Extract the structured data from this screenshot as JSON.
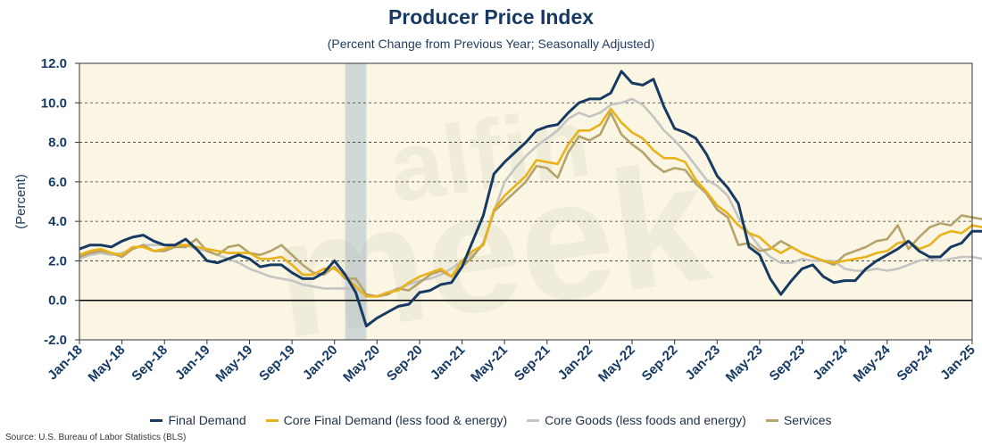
{
  "chart_data": {
    "type": "line",
    "title": "Producer Price Index",
    "subtitle": "(Percent Change from Previous Year; Seasonally Adjusted)",
    "ylabel": "(Percent)",
    "ylim": [
      -2,
      12
    ],
    "yticks": [
      "12.0",
      "10.0",
      "8.0",
      "6.0",
      "4.0",
      "2.0",
      "0.0",
      "-2.0"
    ],
    "xtick_labels": [
      "Jan-18",
      "May-18",
      "Sep-18",
      "Jan-19",
      "May-19",
      "Sep-19",
      "Jan-20",
      "May-20",
      "Sep-20",
      "Jan-21",
      "May-21",
      "Sep-21",
      "Jan-22",
      "May-22",
      "Sep-22",
      "Jan-23",
      "May-23",
      "Sep-23",
      "Jan-24",
      "May-24",
      "Sep-24",
      "Jan-25"
    ],
    "x_start": "Jan-18",
    "x_end": "Jan-25",
    "recession": {
      "start": "Feb-20",
      "end": "Apr-20"
    },
    "grid": "horizontal dashed",
    "legend_position": "bottom",
    "watermark": "alfin meek",
    "series": [
      {
        "name": "Final Demand",
        "color": "#173a63",
        "values": [
          2.6,
          2.8,
          2.8,
          2.7,
          3.0,
          3.2,
          3.3,
          3.0,
          2.8,
          2.8,
          3.1,
          2.6,
          2.0,
          1.9,
          2.1,
          2.3,
          2.1,
          1.7,
          1.8,
          1.8,
          1.4,
          1.1,
          1.1,
          1.4,
          2.0,
          1.3,
          0.4,
          -1.3,
          -0.9,
          -0.6,
          -0.3,
          -0.2,
          0.4,
          0.5,
          0.8,
          0.9,
          1.7,
          3.0,
          4.3,
          6.4,
          7.0,
          7.5,
          8.0,
          8.6,
          8.8,
          8.9,
          9.5,
          10.0,
          10.2,
          10.2,
          10.5,
          11.6,
          11.0,
          10.9,
          11.2,
          9.8,
          8.7,
          8.5,
          8.2,
          7.4,
          6.3,
          5.7,
          4.9,
          2.7,
          2.3,
          1.1,
          0.3,
          1.0,
          1.6,
          1.8,
          1.2,
          0.9,
          1.0,
          1.0,
          1.6,
          2.0,
          2.3,
          2.6,
          3.0,
          2.5,
          2.2,
          2.2,
          2.7,
          2.9,
          3.5,
          3.5
        ]
      },
      {
        "name": "Core Final Demand (less food & energy)",
        "color": "#eab21a",
        "values": [
          2.3,
          2.5,
          2.6,
          2.4,
          2.3,
          2.7,
          2.7,
          2.5,
          2.6,
          2.8,
          2.8,
          2.7,
          2.6,
          2.5,
          2.4,
          2.4,
          2.4,
          2.1,
          2.1,
          2.2,
          1.8,
          1.3,
          1.3,
          1.6,
          1.6,
          1.2,
          0.7,
          0.2,
          0.2,
          0.4,
          0.5,
          0.9,
          1.2,
          1.4,
          1.6,
          1.2,
          2.0,
          2.5,
          2.8,
          4.6,
          5.3,
          5.8,
          6.3,
          7.1,
          7.0,
          6.9,
          7.9,
          8.6,
          8.6,
          8.9,
          9.7,
          9.0,
          8.5,
          8.2,
          7.6,
          7.2,
          7.2,
          7.0,
          6.1,
          5.5,
          4.8,
          4.4,
          3.8,
          3.4,
          3.2,
          2.7,
          2.4,
          2.7,
          2.4,
          2.2,
          2.0,
          1.9,
          2.0,
          2.1,
          2.2,
          2.4,
          2.5,
          2.9,
          3.0,
          2.6,
          2.8,
          3.3,
          3.5,
          3.4,
          3.8,
          3.7
        ]
      },
      {
        "name": "Core Goods (less foods and energy)",
        "color": "#c4c4c4",
        "values": [
          2.1,
          2.3,
          2.4,
          2.3,
          2.4,
          2.6,
          2.8,
          2.8,
          2.8,
          2.8,
          2.8,
          2.6,
          2.5,
          2.3,
          2.1,
          1.9,
          1.6,
          1.4,
          1.2,
          1.1,
          1.0,
          0.8,
          0.7,
          0.6,
          0.6,
          0.6,
          0.6,
          0.3,
          0.2,
          0.4,
          0.6,
          0.8,
          1.0,
          1.1,
          1.3,
          1.6,
          2.0,
          2.3,
          2.8,
          4.5,
          6.0,
          6.7,
          7.3,
          7.8,
          8.2,
          8.6,
          9.2,
          9.5,
          9.3,
          9.5,
          9.9,
          10.0,
          10.2,
          9.9,
          9.3,
          8.6,
          8.1,
          7.5,
          6.8,
          6.1,
          5.8,
          5.3,
          4.2,
          3.4,
          2.7,
          2.2,
          1.9,
          1.9,
          2.1,
          2.0,
          2.0,
          2.0,
          1.6,
          1.5,
          1.5,
          1.6,
          1.5,
          1.6,
          1.8,
          2.0,
          2.1,
          2.0,
          2.1,
          2.2,
          2.2,
          2.1
        ]
      },
      {
        "name": "Services",
        "color": "#b5a36b",
        "values": [
          2.2,
          2.4,
          2.5,
          2.4,
          2.2,
          2.6,
          2.8,
          2.5,
          2.5,
          2.7,
          2.7,
          3.1,
          2.5,
          2.3,
          2.7,
          2.8,
          2.4,
          2.3,
          2.5,
          2.8,
          2.3,
          1.8,
          1.4,
          1.3,
          1.7,
          1.1,
          1.1,
          0.3,
          0.2,
          0.3,
          0.6,
          0.5,
          0.9,
          1.3,
          1.5,
          1.2,
          1.7,
          2.2,
          2.9,
          4.5,
          5.0,
          5.5,
          6.0,
          6.8,
          6.7,
          6.2,
          7.5,
          8.3,
          8.1,
          8.4,
          9.5,
          8.4,
          7.9,
          7.5,
          6.9,
          6.5,
          6.7,
          6.6,
          5.9,
          5.4,
          4.6,
          4.2,
          2.8,
          2.9,
          2.5,
          2.6,
          3.0,
          2.7,
          2.4,
          2.2,
          2.0,
          1.8,
          2.3,
          2.5,
          2.7,
          3.0,
          3.1,
          3.8,
          2.6,
          3.2,
          3.7,
          3.9,
          3.8,
          4.3,
          4.2,
          4.1
        ]
      }
    ]
  },
  "source": "Source: U.S. Bureau of Labor Statistics (BLS)"
}
